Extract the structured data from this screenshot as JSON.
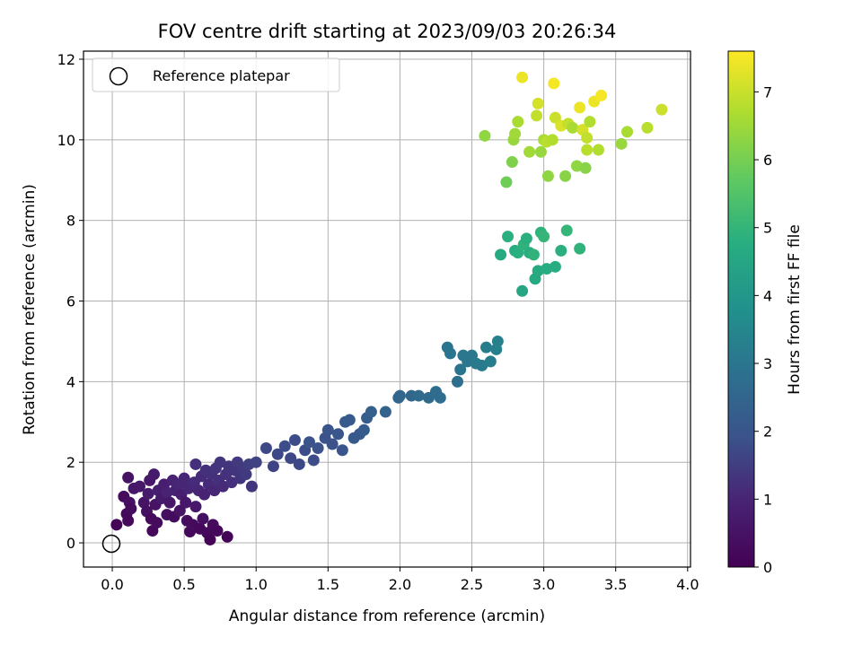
{
  "chart_data": {
    "type": "scatter",
    "title": "FOV centre drift starting at 2023/09/03 20:26:34",
    "xlabel": "Angular distance from reference (arcmin)",
    "ylabel": "Rotation from reference (arcmin)",
    "xlim": [
      -0.2,
      4.02
    ],
    "ylim": [
      -0.6,
      12.2
    ],
    "xticks": [
      "0.0",
      "0.5",
      "1.0",
      "1.5",
      "2.0",
      "2.5",
      "3.0",
      "3.5",
      "4.0"
    ],
    "yticks": [
      "0",
      "2",
      "4",
      "6",
      "8",
      "10",
      "12"
    ],
    "grid": true,
    "legend": {
      "position": "upper-left",
      "entries": [
        "Reference platepar"
      ]
    },
    "reference_point": {
      "x": 0.0,
      "y": 0.0,
      "marker": "hollow-circle"
    },
    "colorbar": {
      "label": "Hours from first FF file",
      "range": [
        0,
        7.6
      ],
      "ticks": [
        "0",
        "1",
        "2",
        "3",
        "4",
        "5",
        "6",
        "7"
      ],
      "colormap": "viridis"
    },
    "points": [
      {
        "x": 0.03,
        "y": 0.45,
        "h": 0.1
      },
      {
        "x": 0.08,
        "y": 1.15,
        "h": 0.3
      },
      {
        "x": 0.1,
        "y": 0.72,
        "h": 0.2
      },
      {
        "x": 0.11,
        "y": 0.55,
        "h": 0.2
      },
      {
        "x": 0.12,
        "y": 1.0,
        "h": 0.4
      },
      {
        "x": 0.13,
        "y": 0.85,
        "h": 0.3
      },
      {
        "x": 0.11,
        "y": 1.62,
        "h": 0.5
      },
      {
        "x": 0.15,
        "y": 1.35,
        "h": 0.6
      },
      {
        "x": 0.19,
        "y": 1.4,
        "h": 0.6
      },
      {
        "x": 0.22,
        "y": 1.0,
        "h": 0.5
      },
      {
        "x": 0.24,
        "y": 0.78,
        "h": 0.4
      },
      {
        "x": 0.25,
        "y": 1.22,
        "h": 0.7
      },
      {
        "x": 0.26,
        "y": 1.55,
        "h": 0.6
      },
      {
        "x": 0.27,
        "y": 0.6,
        "h": 0.3
      },
      {
        "x": 0.28,
        "y": 0.3,
        "h": 0.2
      },
      {
        "x": 0.29,
        "y": 1.7,
        "h": 0.7
      },
      {
        "x": 0.3,
        "y": 0.95,
        "h": 0.5
      },
      {
        "x": 0.31,
        "y": 0.5,
        "h": 0.3
      },
      {
        "x": 0.32,
        "y": 1.3,
        "h": 0.8
      },
      {
        "x": 0.34,
        "y": 1.1,
        "h": 0.7
      },
      {
        "x": 0.36,
        "y": 1.45,
        "h": 0.8
      },
      {
        "x": 0.38,
        "y": 1.25,
        "h": 0.9
      },
      {
        "x": 0.38,
        "y": 0.7,
        "h": 0.4
      },
      {
        "x": 0.4,
        "y": 1.0,
        "h": 0.6
      },
      {
        "x": 0.42,
        "y": 1.55,
        "h": 0.9
      },
      {
        "x": 0.43,
        "y": 0.65,
        "h": 0.3
      },
      {
        "x": 0.44,
        "y": 1.3,
        "h": 0.9
      },
      {
        "x": 0.46,
        "y": 1.45,
        "h": 1.0
      },
      {
        "x": 0.47,
        "y": 0.8,
        "h": 0.5
      },
      {
        "x": 0.48,
        "y": 1.2,
        "h": 0.8
      },
      {
        "x": 0.5,
        "y": 1.6,
        "h": 1.0
      },
      {
        "x": 0.51,
        "y": 1.0,
        "h": 0.6
      },
      {
        "x": 0.52,
        "y": 0.55,
        "h": 0.3
      },
      {
        "x": 0.53,
        "y": 1.35,
        "h": 1.0
      },
      {
        "x": 0.54,
        "y": 0.28,
        "h": 0.2
      },
      {
        "x": 0.56,
        "y": 0.45,
        "h": 0.3
      },
      {
        "x": 0.57,
        "y": 1.5,
        "h": 1.1
      },
      {
        "x": 0.58,
        "y": 0.9,
        "h": 0.6
      },
      {
        "x": 0.58,
        "y": 1.95,
        "h": 1.2
      },
      {
        "x": 0.6,
        "y": 1.3,
        "h": 1.0
      },
      {
        "x": 0.61,
        "y": 0.35,
        "h": 0.2
      },
      {
        "x": 0.62,
        "y": 1.65,
        "h": 1.1
      },
      {
        "x": 0.63,
        "y": 0.6,
        "h": 0.4
      },
      {
        "x": 0.64,
        "y": 1.2,
        "h": 0.9
      },
      {
        "x": 0.65,
        "y": 1.8,
        "h": 1.2
      },
      {
        "x": 0.66,
        "y": 0.25,
        "h": 0.2
      },
      {
        "x": 0.67,
        "y": 1.45,
        "h": 1.1
      },
      {
        "x": 0.68,
        "y": 0.08,
        "h": 0.1
      },
      {
        "x": 0.69,
        "y": 1.7,
        "h": 1.2
      },
      {
        "x": 0.7,
        "y": 0.45,
        "h": 0.3
      },
      {
        "x": 0.71,
        "y": 1.3,
        "h": 1.0
      },
      {
        "x": 0.72,
        "y": 1.85,
        "h": 1.3
      },
      {
        "x": 0.73,
        "y": 0.3,
        "h": 0.2
      },
      {
        "x": 0.74,
        "y": 1.55,
        "h": 1.2
      },
      {
        "x": 0.75,
        "y": 2.0,
        "h": 1.3
      },
      {
        "x": 0.77,
        "y": 1.4,
        "h": 1.1
      },
      {
        "x": 0.79,
        "y": 1.7,
        "h": 1.2
      },
      {
        "x": 0.8,
        "y": 0.15,
        "h": 0.1
      },
      {
        "x": 0.81,
        "y": 1.9,
        "h": 1.3
      },
      {
        "x": 0.83,
        "y": 1.5,
        "h": 1.2
      },
      {
        "x": 0.85,
        "y": 1.8,
        "h": 1.3
      },
      {
        "x": 0.87,
        "y": 2.0,
        "h": 1.4
      },
      {
        "x": 0.89,
        "y": 1.6,
        "h": 1.3
      },
      {
        "x": 0.91,
        "y": 1.85,
        "h": 1.4
      },
      {
        "x": 0.93,
        "y": 1.7,
        "h": 1.4
      },
      {
        "x": 0.95,
        "y": 1.95,
        "h": 1.5
      },
      {
        "x": 0.97,
        "y": 1.4,
        "h": 1.3
      },
      {
        "x": 1.0,
        "y": 2.0,
        "h": 1.6
      },
      {
        "x": 1.07,
        "y": 2.35,
        "h": 1.7
      },
      {
        "x": 1.12,
        "y": 1.9,
        "h": 1.6
      },
      {
        "x": 1.15,
        "y": 2.2,
        "h": 1.7
      },
      {
        "x": 1.2,
        "y": 2.4,
        "h": 1.8
      },
      {
        "x": 1.24,
        "y": 2.1,
        "h": 1.7
      },
      {
        "x": 1.27,
        "y": 2.55,
        "h": 1.8
      },
      {
        "x": 1.3,
        "y": 1.95,
        "h": 1.7
      },
      {
        "x": 1.34,
        "y": 2.3,
        "h": 1.8
      },
      {
        "x": 1.37,
        "y": 2.5,
        "h": 1.9
      },
      {
        "x": 1.4,
        "y": 2.05,
        "h": 1.8
      },
      {
        "x": 1.43,
        "y": 2.35,
        "h": 1.9
      },
      {
        "x": 1.48,
        "y": 2.6,
        "h": 1.9
      },
      {
        "x": 1.5,
        "y": 2.8,
        "h": 2.0
      },
      {
        "x": 1.53,
        "y": 2.45,
        "h": 1.9
      },
      {
        "x": 1.57,
        "y": 2.7,
        "h": 2.0
      },
      {
        "x": 1.6,
        "y": 2.3,
        "h": 2.0
      },
      {
        "x": 1.62,
        "y": 3.0,
        "h": 2.1
      },
      {
        "x": 1.65,
        "y": 3.05,
        "h": 2.1
      },
      {
        "x": 1.68,
        "y": 2.6,
        "h": 2.1
      },
      {
        "x": 1.72,
        "y": 2.7,
        "h": 2.1
      },
      {
        "x": 1.75,
        "y": 2.8,
        "h": 2.2
      },
      {
        "x": 1.77,
        "y": 3.1,
        "h": 2.2
      },
      {
        "x": 1.8,
        "y": 3.25,
        "h": 2.3
      },
      {
        "x": 1.9,
        "y": 3.25,
        "h": 2.4
      },
      {
        "x": 1.99,
        "y": 3.6,
        "h": 2.5
      },
      {
        "x": 2.0,
        "y": 3.65,
        "h": 2.5
      },
      {
        "x": 2.08,
        "y": 3.65,
        "h": 2.5
      },
      {
        "x": 2.13,
        "y": 3.65,
        "h": 2.6
      },
      {
        "x": 2.2,
        "y": 3.6,
        "h": 2.6
      },
      {
        "x": 2.25,
        "y": 3.75,
        "h": 2.7
      },
      {
        "x": 2.28,
        "y": 3.6,
        "h": 2.7
      },
      {
        "x": 2.33,
        "y": 4.85,
        "h": 2.9
      },
      {
        "x": 2.35,
        "y": 4.7,
        "h": 2.9
      },
      {
        "x": 2.4,
        "y": 4.0,
        "h": 2.8
      },
      {
        "x": 2.42,
        "y": 4.3,
        "h": 2.9
      },
      {
        "x": 2.44,
        "y": 4.65,
        "h": 3.0
      },
      {
        "x": 2.47,
        "y": 4.5,
        "h": 3.0
      },
      {
        "x": 2.5,
        "y": 4.65,
        "h": 3.0
      },
      {
        "x": 2.53,
        "y": 4.45,
        "h": 3.1
      },
      {
        "x": 2.57,
        "y": 4.4,
        "h": 3.1
      },
      {
        "x": 2.6,
        "y": 4.85,
        "h": 3.2
      },
      {
        "x": 2.63,
        "y": 4.5,
        "h": 3.2
      },
      {
        "x": 2.67,
        "y": 4.8,
        "h": 3.3
      },
      {
        "x": 2.68,
        "y": 5.0,
        "h": 3.3
      },
      {
        "x": 2.7,
        "y": 7.15,
        "h": 4.6
      },
      {
        "x": 2.75,
        "y": 7.6,
        "h": 4.8
      },
      {
        "x": 2.8,
        "y": 7.25,
        "h": 4.7
      },
      {
        "x": 2.82,
        "y": 7.2,
        "h": 4.8
      },
      {
        "x": 2.85,
        "y": 6.25,
        "h": 4.5
      },
      {
        "x": 2.86,
        "y": 7.4,
        "h": 4.9
      },
      {
        "x": 2.88,
        "y": 7.55,
        "h": 4.8
      },
      {
        "x": 2.9,
        "y": 7.2,
        "h": 4.7
      },
      {
        "x": 2.93,
        "y": 7.15,
        "h": 4.9
      },
      {
        "x": 2.94,
        "y": 6.55,
        "h": 4.6
      },
      {
        "x": 2.96,
        "y": 6.75,
        "h": 4.6
      },
      {
        "x": 2.98,
        "y": 7.7,
        "h": 4.9
      },
      {
        "x": 3.0,
        "y": 7.6,
        "h": 5.0
      },
      {
        "x": 3.02,
        "y": 6.8,
        "h": 4.7
      },
      {
        "x": 3.08,
        "y": 6.85,
        "h": 4.7
      },
      {
        "x": 3.12,
        "y": 7.25,
        "h": 4.8
      },
      {
        "x": 3.16,
        "y": 7.75,
        "h": 5.0
      },
      {
        "x": 3.25,
        "y": 7.3,
        "h": 4.9
      },
      {
        "x": 2.59,
        "y": 10.1,
        "h": 6.3
      },
      {
        "x": 2.74,
        "y": 8.95,
        "h": 5.9
      },
      {
        "x": 2.78,
        "y": 9.45,
        "h": 6.1
      },
      {
        "x": 2.79,
        "y": 10.0,
        "h": 6.4
      },
      {
        "x": 2.8,
        "y": 10.15,
        "h": 6.5
      },
      {
        "x": 2.82,
        "y": 10.45,
        "h": 6.6
      },
      {
        "x": 2.85,
        "y": 11.55,
        "h": 7.4
      },
      {
        "x": 2.9,
        "y": 9.7,
        "h": 6.5
      },
      {
        "x": 2.95,
        "y": 10.6,
        "h": 6.9
      },
      {
        "x": 2.96,
        "y": 10.9,
        "h": 7.1
      },
      {
        "x": 2.98,
        "y": 9.7,
        "h": 6.4
      },
      {
        "x": 3.0,
        "y": 10.0,
        "h": 6.6
      },
      {
        "x": 3.02,
        "y": 9.95,
        "h": 6.8
      },
      {
        "x": 3.03,
        "y": 9.1,
        "h": 6.3
      },
      {
        "x": 3.06,
        "y": 10.0,
        "h": 6.7
      },
      {
        "x": 3.07,
        "y": 11.4,
        "h": 7.5
      },
      {
        "x": 3.08,
        "y": 10.55,
        "h": 7.0
      },
      {
        "x": 3.12,
        "y": 10.35,
        "h": 7.2
      },
      {
        "x": 3.15,
        "y": 9.1,
        "h": 6.2
      },
      {
        "x": 3.17,
        "y": 10.4,
        "h": 6.9
      },
      {
        "x": 3.2,
        "y": 10.3,
        "h": 6.6
      },
      {
        "x": 3.23,
        "y": 9.35,
        "h": 6.3
      },
      {
        "x": 3.25,
        "y": 10.8,
        "h": 7.4
      },
      {
        "x": 3.27,
        "y": 10.25,
        "h": 7.1
      },
      {
        "x": 3.29,
        "y": 9.3,
        "h": 6.2
      },
      {
        "x": 3.3,
        "y": 9.75,
        "h": 6.8
      },
      {
        "x": 3.3,
        "y": 10.05,
        "h": 6.9
      },
      {
        "x": 3.32,
        "y": 10.45,
        "h": 6.7
      },
      {
        "x": 3.35,
        "y": 10.95,
        "h": 7.4
      },
      {
        "x": 3.38,
        "y": 9.75,
        "h": 6.7
      },
      {
        "x": 3.4,
        "y": 11.1,
        "h": 7.5
      },
      {
        "x": 3.54,
        "y": 9.9,
        "h": 6.4
      },
      {
        "x": 3.58,
        "y": 10.2,
        "h": 6.6
      },
      {
        "x": 3.72,
        "y": 10.3,
        "h": 6.8
      },
      {
        "x": 3.82,
        "y": 10.75,
        "h": 7.0
      }
    ]
  }
}
